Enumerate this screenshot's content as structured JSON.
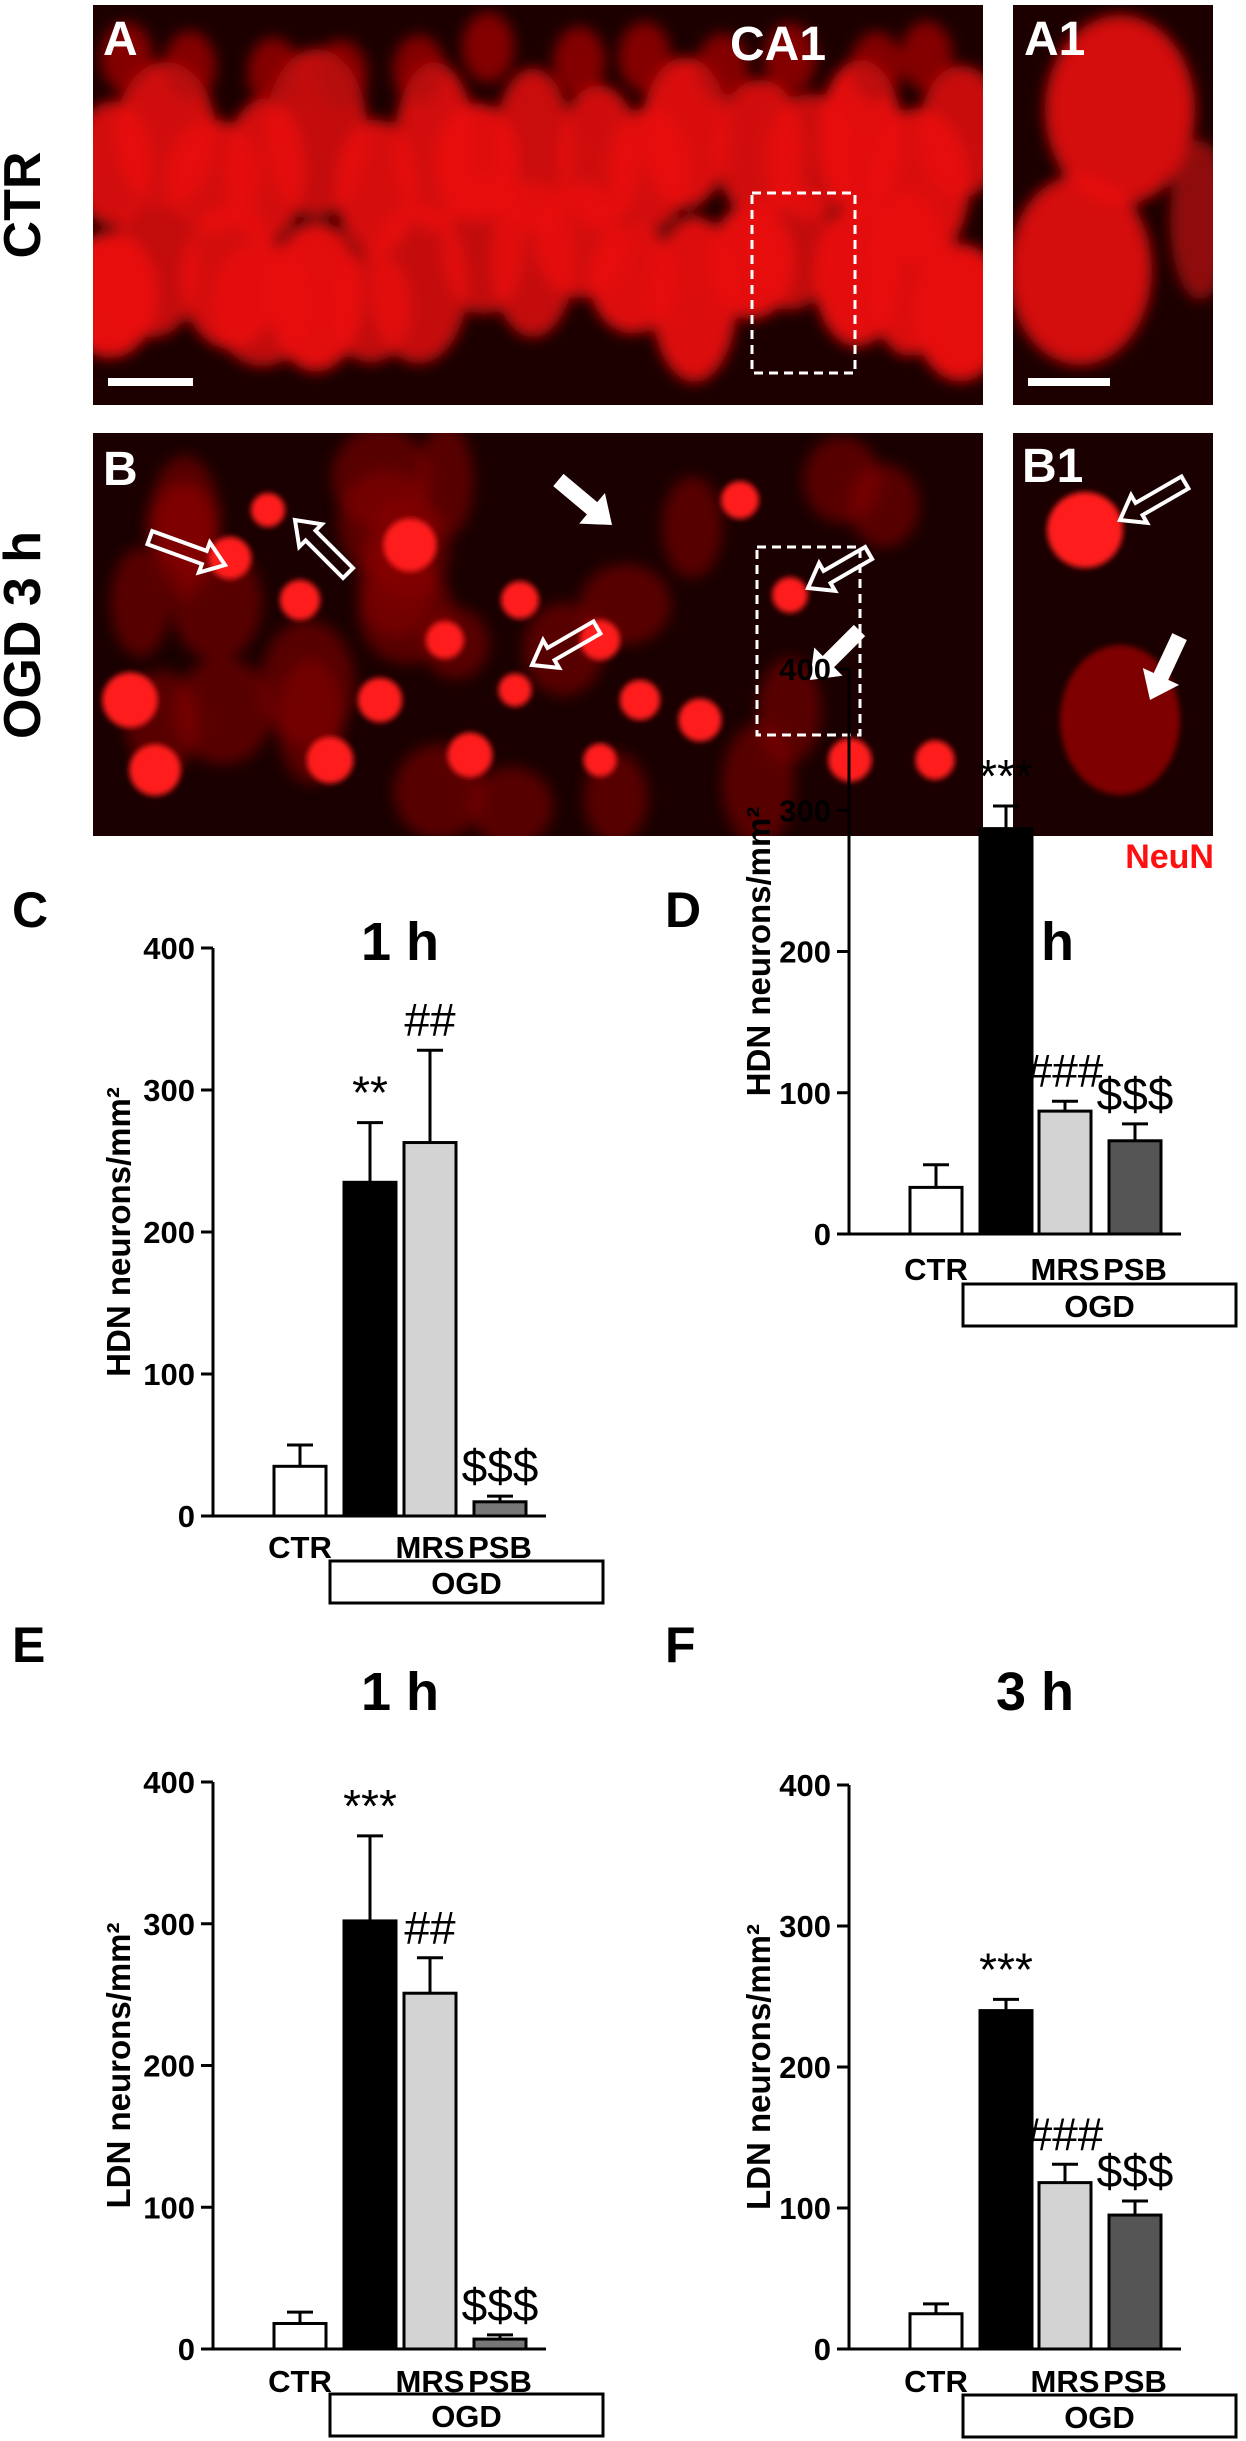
{
  "micrographs": {
    "row_labels": [
      "CTR",
      "OGD 3 h"
    ],
    "panels": [
      {
        "id": "A",
        "label": "A",
        "region": "CA1"
      },
      {
        "id": "A1",
        "label": "A1"
      },
      {
        "id": "B",
        "label": "B"
      },
      {
        "id": "B1",
        "label": "B1"
      }
    ],
    "stain_label": "NeuN",
    "stain_color": "#ff1010",
    "cell_color": "#e81010",
    "background_color": "#1a0000"
  },
  "chart_data": [
    {
      "panel": "C",
      "type": "bar",
      "title": "1 h",
      "ylabel": "HDN neurons/mm²",
      "ylim": [
        0,
        400
      ],
      "yticks": [
        0,
        100,
        200,
        300,
        400
      ],
      "categories": [
        "CTR",
        "",
        "MRS",
        "PSB"
      ],
      "group_label": "OGD",
      "values": [
        35,
        235,
        263,
        10
      ],
      "errors": [
        15,
        42,
        65,
        4
      ],
      "significance": [
        "",
        "**",
        "##",
        "$$$"
      ],
      "bar_colors": [
        "#ffffff",
        "#000000",
        "#d3d3d3",
        "#777777"
      ]
    },
    {
      "panel": "D",
      "type": "bar",
      "title": "3 h",
      "ylabel": "HDN neurons/mm²",
      "ylim": [
        0,
        400
      ],
      "yticks": [
        0,
        100,
        200,
        300,
        400
      ],
      "categories": [
        "CTR",
        "",
        "MRS",
        "PSB"
      ],
      "group_label": "OGD",
      "values": [
        33,
        287,
        87,
        66
      ],
      "errors": [
        16,
        16,
        7,
        12
      ],
      "significance": [
        "",
        "***",
        "###",
        "$$$"
      ],
      "bar_colors": [
        "#ffffff",
        "#000000",
        "#d3d3d3",
        "#555555"
      ]
    },
    {
      "panel": "E",
      "type": "bar",
      "title": "1 h",
      "ylabel": "LDN neurons/mm²",
      "ylim": [
        0,
        400
      ],
      "yticks": [
        0,
        100,
        200,
        300,
        400
      ],
      "categories": [
        "CTR",
        "",
        "MRS",
        "PSB"
      ],
      "group_label": "OGD",
      "values": [
        18,
        302,
        251,
        7
      ],
      "errors": [
        8,
        60,
        25,
        3
      ],
      "significance": [
        "",
        "***",
        "##",
        "$$$"
      ],
      "bar_colors": [
        "#ffffff",
        "#000000",
        "#d3d3d3",
        "#777777"
      ]
    },
    {
      "panel": "F",
      "type": "bar",
      "title": "3 h",
      "ylabel": "LDN neurons/mm²",
      "ylim": [
        0,
        400
      ],
      "yticks": [
        0,
        100,
        200,
        300,
        400
      ],
      "categories": [
        "CTR",
        "",
        "MRS",
        "PSB"
      ],
      "group_label": "OGD",
      "values": [
        25,
        240,
        118,
        95
      ],
      "errors": [
        7,
        8,
        13,
        10
      ],
      "significance": [
        "",
        "***",
        "###",
        "$$$"
      ],
      "bar_colors": [
        "#ffffff",
        "#000000",
        "#d3d3d3",
        "#555555"
      ]
    }
  ]
}
